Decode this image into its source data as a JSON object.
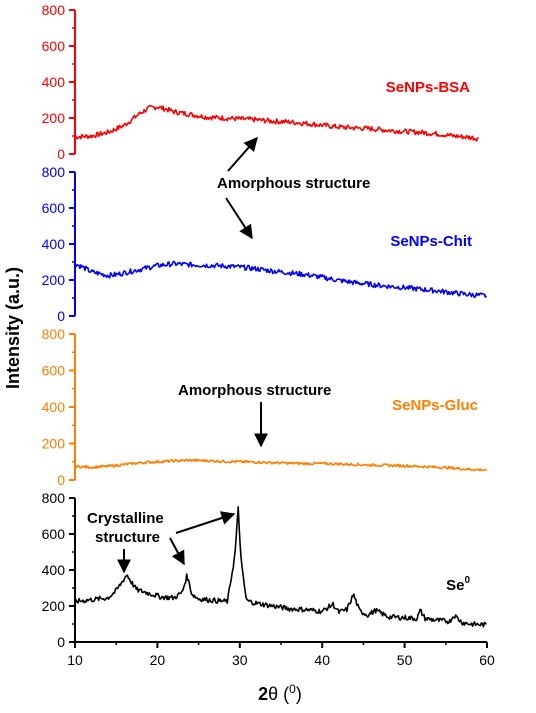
{
  "figure": {
    "ylabel": "Intensity (a.u.)",
    "xlabel_main": "2",
    "xlabel_theta": "θ",
    "xlabel_unit_open": " (",
    "xlabel_unit_sup": "0",
    "xlabel_unit_close": ")"
  },
  "annotations": {
    "amorphous_top": "Amorphous structure",
    "amorphous_mid": "Amorphous structure",
    "crystalline_line1": "Crystalline",
    "crystalline_line2": "structure"
  },
  "colors": {
    "bsa": "#ff0000",
    "chit": "#0000ff",
    "gluc": "#ff7f00",
    "se": "#000000"
  },
  "chart_data": {
    "type": "line",
    "xlim": [
      10,
      60
    ],
    "x_ticks": [
      "10",
      "20",
      "30",
      "40",
      "50",
      "60"
    ],
    "ylim": [
      0,
      800
    ],
    "grid": false,
    "series": [
      {
        "name": "SeNPs-BSA",
        "label_sup": "",
        "color": "#ff0000",
        "y_ticks": [
          "0",
          "200",
          "400",
          "600",
          "800"
        ],
        "x": [
          10,
          12,
          14,
          16,
          18,
          19,
          20,
          21,
          22,
          24,
          26,
          28,
          30,
          32,
          34,
          36,
          38,
          40,
          42,
          44,
          46,
          48,
          50,
          52,
          54,
          56,
          58,
          59
        ],
        "y": [
          95,
          100,
          120,
          160,
          230,
          255,
          262,
          250,
          235,
          220,
          205,
          200,
          195,
          190,
          182,
          178,
          170,
          160,
          150,
          145,
          140,
          132,
          125,
          120,
          112,
          100,
          92,
          85
        ]
      },
      {
        "name": "SeNPs-Chit",
        "label_sup": "",
        "color": "#0000ff",
        "y_ticks": [
          "0",
          "200",
          "400",
          "600",
          "800"
        ],
        "x": [
          10,
          11,
          12,
          13,
          14,
          15,
          16,
          18,
          20,
          22,
          24,
          26,
          28,
          30,
          32,
          34,
          36,
          38,
          40,
          42,
          44,
          46,
          48,
          50,
          52,
          54,
          56,
          58,
          60
        ],
        "y": [
          290,
          270,
          245,
          235,
          225,
          230,
          240,
          260,
          280,
          290,
          285,
          282,
          278,
          272,
          262,
          250,
          240,
          230,
          215,
          198,
          185,
          175,
          165,
          158,
          148,
          140,
          128,
          118,
          112
        ]
      },
      {
        "name": "SeNPs-Gluc",
        "label_sup": "",
        "color": "#ff7f00",
        "y_ticks": [
          "0",
          "200",
          "400",
          "600",
          "800"
        ],
        "x": [
          10,
          12,
          14,
          16,
          18,
          20,
          22,
          24,
          26,
          28,
          30,
          32,
          34,
          36,
          38,
          40,
          42,
          44,
          46,
          48,
          50,
          52,
          54,
          56,
          58,
          60
        ],
        "y": [
          75,
          70,
          75,
          85,
          95,
          100,
          105,
          108,
          106,
          102,
          100,
          98,
          95,
          92,
          90,
          90,
          88,
          85,
          82,
          80,
          78,
          74,
          70,
          65,
          58,
          55
        ]
      },
      {
        "name": "Se",
        "label_sup": "0",
        "color": "#000000",
        "y_ticks": [
          "0",
          "200",
          "400",
          "600",
          "800"
        ],
        "x": [
          10,
          12,
          14,
          15,
          15.8,
          16.3,
          16.8,
          17.5,
          19,
          20.5,
          22,
          23,
          23.6,
          24.2,
          25,
          27,
          28.5,
          29.4,
          29.8,
          30.2,
          30.8,
          32,
          34,
          36,
          38,
          40,
          41.3,
          42,
          43,
          43.8,
          44.5,
          45.5,
          46.5,
          48,
          50,
          51.5,
          51.9,
          52.5,
          54,
          55.5,
          56,
          57,
          58,
          60
        ],
        "y": [
          225,
          235,
          245,
          285,
          340,
          375,
          335,
          290,
          270,
          250,
          245,
          275,
          370,
          265,
          240,
          230,
          225,
          480,
          740,
          430,
          230,
          215,
          200,
          185,
          180,
          170,
          210,
          165,
          180,
          265,
          175,
          150,
          175,
          140,
          135,
          130,
          175,
          130,
          120,
          115,
          150,
          108,
          100,
          95
        ]
      }
    ]
  }
}
